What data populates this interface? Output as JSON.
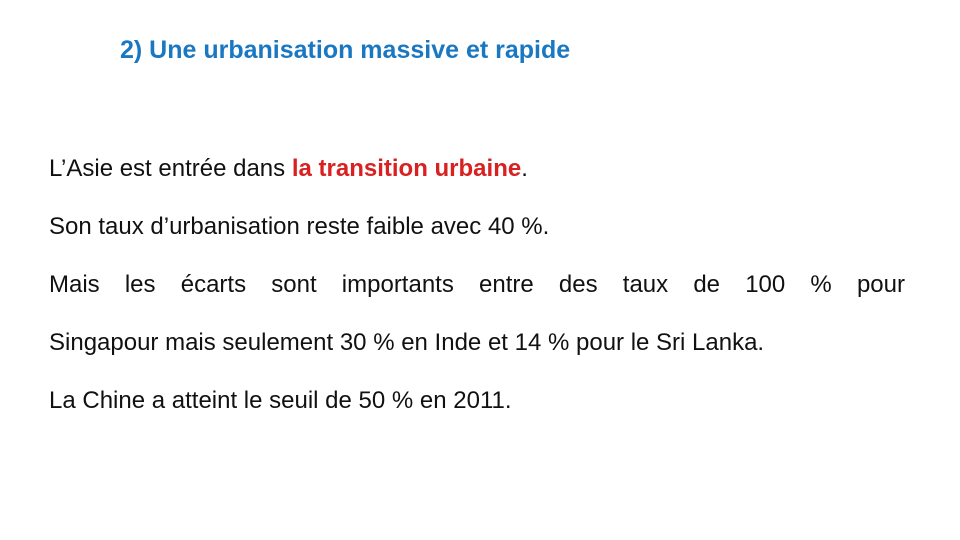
{
  "title": "2) Une urbanisation massive et rapide",
  "paragraphs": {
    "p1_before": "L’Asie est entrée dans ",
    "p1_highlight": "la transition urbaine",
    "p1_after": ".",
    "p2": "Son taux d’urbanisation reste faible avec 40 %.",
    "p3_line1": "Mais les écarts sont importants entre des taux de 100 % pour",
    "p3_line2": "Singapour mais seulement 30 % en Inde et 14 % pour le Sri Lanka.",
    "p4": "La Chine a atteint le seuil de 50 % en 2011."
  },
  "colors": {
    "title": "#1a78c2",
    "highlight": "#d92121",
    "text": "#111111"
  }
}
